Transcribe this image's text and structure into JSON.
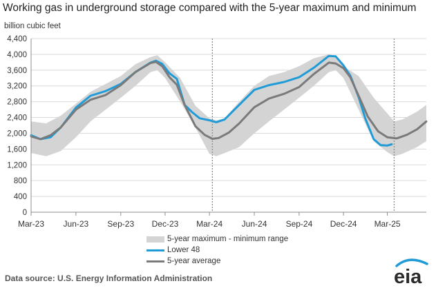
{
  "chart_data": {
    "type": "area",
    "title": "Working gas in underground  storage compared with the 5-year maximum and minimum",
    "ylabel": "billion cubic feet",
    "xlabel": "",
    "ylim": [
      0,
      4400
    ],
    "yticks": [
      0,
      400,
      800,
      1200,
      1600,
      2000,
      2400,
      2800,
      3200,
      3600,
      4000,
      4400
    ],
    "ytick_labels": [
      "0",
      "400",
      "800",
      "1,200",
      "1,600",
      "2,000",
      "2,400",
      "2,800",
      "3,200",
      "3,600",
      "4,000",
      "4,400"
    ],
    "xrange": [
      "2023-03-01",
      "2025-05-20"
    ],
    "xticks": [
      "2023-03-01",
      "2023-06-01",
      "2023-09-01",
      "2023-12-01",
      "2024-03-01",
      "2024-06-01",
      "2024-09-01",
      "2024-12-01",
      "2025-03-01"
    ],
    "xtick_labels": [
      "Mar-23",
      "Jun-23",
      "Sep-23",
      "Dec-23",
      "Mar-24",
      "Jun-24",
      "Sep-24",
      "Dec-24",
      "Mar-25"
    ],
    "reference_lines": [
      "2024-03-07",
      "2025-03-15"
    ],
    "grid": "horizontal",
    "series": [
      {
        "name": "5-year maximum - minimum range",
        "type": "band",
        "color": "#d4d4d4",
        "x": [
          "2023-03-01",
          "2023-04-01",
          "2023-05-01",
          "2023-06-01",
          "2023-07-01",
          "2023-08-01",
          "2023-09-01",
          "2023-10-01",
          "2023-11-01",
          "2023-11-15",
          "2023-12-01",
          "2024-01-01",
          "2024-02-01",
          "2024-03-01",
          "2024-03-15",
          "2024-04-01",
          "2024-05-01",
          "2024-06-01",
          "2024-07-01",
          "2024-08-01",
          "2024-09-01",
          "2024-10-01",
          "2024-11-01",
          "2024-11-15",
          "2024-12-01",
          "2025-01-01",
          "2025-02-01",
          "2025-03-01",
          "2025-03-15",
          "2025-04-01",
          "2025-05-01",
          "2025-05-20"
        ],
        "upper": [
          2300,
          2250,
          2450,
          2750,
          3050,
          3250,
          3450,
          3750,
          3930,
          3980,
          3800,
          3400,
          2700,
          2380,
          2330,
          2380,
          2800,
          3200,
          3450,
          3550,
          3700,
          3900,
          4000,
          3960,
          3700,
          3450,
          2900,
          2500,
          2300,
          2350,
          2550,
          2720
        ],
        "lower": [
          1500,
          1420,
          1550,
          1900,
          2300,
          2600,
          2900,
          3200,
          3550,
          3600,
          3400,
          2800,
          2150,
          1480,
          1420,
          1500,
          1650,
          2000,
          2300,
          2600,
          2900,
          3200,
          3550,
          3600,
          3400,
          2600,
          1800,
          1520,
          1420,
          1480,
          1650,
          1800
        ]
      },
      {
        "name": "Lower 48",
        "type": "line",
        "color": "#1f9bd7",
        "x": [
          "2023-03-01",
          "2023-03-20",
          "2023-04-10",
          "2023-05-01",
          "2023-06-01",
          "2023-07-01",
          "2023-08-01",
          "2023-09-01",
          "2023-10-01",
          "2023-11-01",
          "2023-11-12",
          "2023-11-25",
          "2023-12-10",
          "2023-12-25",
          "2024-01-10",
          "2024-01-25",
          "2024-02-10",
          "2024-03-01",
          "2024-03-15",
          "2024-04-01",
          "2024-05-01",
          "2024-06-01",
          "2024-07-01",
          "2024-08-01",
          "2024-09-01",
          "2024-10-01",
          "2024-11-01",
          "2024-11-15",
          "2024-12-01",
          "2024-12-15",
          "2025-01-01",
          "2025-01-15",
          "2025-02-01",
          "2025-02-15",
          "2025-03-01",
          "2025-03-10"
        ],
        "values": [
          1950,
          1850,
          1900,
          2150,
          2650,
          2950,
          3070,
          3250,
          3550,
          3790,
          3840,
          3760,
          3520,
          3380,
          2720,
          2540,
          2380,
          2330,
          2280,
          2350,
          2720,
          3100,
          3220,
          3300,
          3420,
          3660,
          3960,
          3950,
          3720,
          3460,
          2920,
          2370,
          1850,
          1700,
          1690,
          1720
        ]
      },
      {
        "name": "5-year average",
        "type": "line",
        "color": "#7a7a7a",
        "x": [
          "2023-03-01",
          "2023-03-20",
          "2023-04-10",
          "2023-05-01",
          "2023-06-01",
          "2023-07-01",
          "2023-08-01",
          "2023-09-01",
          "2023-10-01",
          "2023-11-01",
          "2023-11-12",
          "2023-11-25",
          "2023-12-10",
          "2023-12-25",
          "2024-01-10",
          "2024-02-01",
          "2024-02-20",
          "2024-03-07",
          "2024-03-20",
          "2024-04-10",
          "2024-05-01",
          "2024-06-01",
          "2024-07-01",
          "2024-08-01",
          "2024-09-01",
          "2024-10-01",
          "2024-11-01",
          "2024-11-15",
          "2024-12-01",
          "2024-12-15",
          "2025-01-01",
          "2025-01-20",
          "2025-02-10",
          "2025-03-01",
          "2025-03-20",
          "2025-04-10",
          "2025-05-01",
          "2025-05-20"
        ],
        "values": [
          1920,
          1850,
          1950,
          2150,
          2600,
          2850,
          2970,
          3220,
          3550,
          3780,
          3810,
          3700,
          3420,
          3230,
          2720,
          2180,
          1960,
          1860,
          1880,
          2020,
          2250,
          2660,
          2880,
          3000,
          3170,
          3500,
          3790,
          3770,
          3650,
          3420,
          2950,
          2420,
          2050,
          1900,
          1870,
          1960,
          2100,
          2300
        ]
      }
    ]
  },
  "legend": {
    "range": "5-year maximum - minimum range",
    "lower48": "Lower 48",
    "average": "5-year average"
  },
  "source": "Data source:  U.S. Energy Information Administration",
  "logo_text": "eia"
}
